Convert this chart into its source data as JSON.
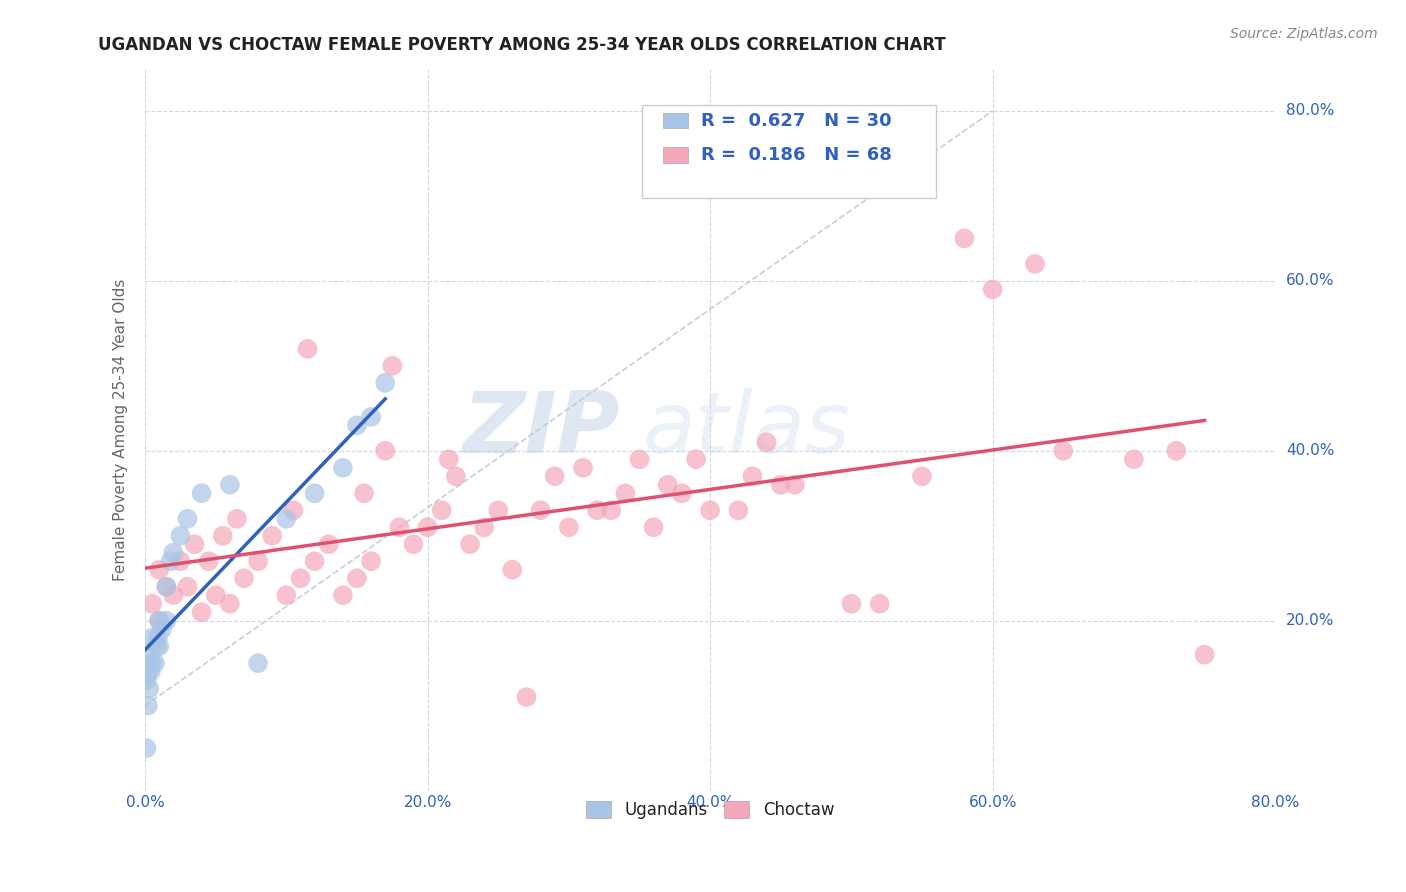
{
  "title": "UGANDAN VS CHOCTAW FEMALE POVERTY AMONG 25-34 YEAR OLDS CORRELATION CHART",
  "source": "Source: ZipAtlas.com",
  "ylabel": "Female Poverty Among 25-34 Year Olds",
  "watermark_zip": "ZIP",
  "watermark_atlas": "atlas",
  "ugandan_R": 0.627,
  "ugandan_N": 30,
  "choctaw_R": 0.186,
  "choctaw_N": 68,
  "ugandan_color": "#a8c4e6",
  "choctaw_color": "#f4a7b9",
  "ugandan_line_color": "#3060c0",
  "choctaw_line_color": "#e05070",
  "diagonal_line_color": "#c0c8d8",
  "background_color": "#ffffff",
  "grid_color": "#d0d8e8",
  "title_color": "#222222",
  "R_N_color": "#3060c0",
  "axis_label_color": "#666666",
  "tick_color": "#3060c0",
  "legend_labels": [
    "Ugandans",
    "Choctaw"
  ],
  "ugandan_x": [
    0.001,
    0.001,
    0.002,
    0.002,
    0.003,
    0.003,
    0.004,
    0.005,
    0.005,
    0.007,
    0.008,
    0.009,
    0.01,
    0.01,
    0.012,
    0.015,
    0.015,
    0.018,
    0.02,
    0.025,
    0.03,
    0.04,
    0.06,
    0.08,
    0.1,
    0.12,
    0.14,
    0.15,
    0.16,
    0.17
  ],
  "ugandan_y": [
    0.13,
    0.05,
    0.1,
    0.14,
    0.12,
    0.16,
    0.14,
    0.15,
    0.18,
    0.15,
    0.17,
    0.18,
    0.17,
    0.2,
    0.19,
    0.2,
    0.24,
    0.27,
    0.28,
    0.3,
    0.32,
    0.35,
    0.36,
    0.15,
    0.32,
    0.35,
    0.38,
    0.43,
    0.44,
    0.48
  ],
  "choctaw_x": [
    0.005,
    0.01,
    0.01,
    0.015,
    0.02,
    0.025,
    0.03,
    0.035,
    0.04,
    0.045,
    0.05,
    0.055,
    0.06,
    0.065,
    0.07,
    0.08,
    0.09,
    0.1,
    0.105,
    0.11,
    0.115,
    0.12,
    0.13,
    0.14,
    0.15,
    0.155,
    0.16,
    0.17,
    0.175,
    0.18,
    0.19,
    0.2,
    0.21,
    0.215,
    0.22,
    0.23,
    0.24,
    0.25,
    0.26,
    0.27,
    0.28,
    0.29,
    0.3,
    0.31,
    0.32,
    0.33,
    0.34,
    0.35,
    0.36,
    0.37,
    0.38,
    0.39,
    0.4,
    0.42,
    0.43,
    0.44,
    0.45,
    0.46,
    0.5,
    0.52,
    0.55,
    0.58,
    0.6,
    0.63,
    0.65,
    0.7,
    0.73,
    0.75
  ],
  "choctaw_y": [
    0.22,
    0.2,
    0.26,
    0.24,
    0.23,
    0.27,
    0.24,
    0.29,
    0.21,
    0.27,
    0.23,
    0.3,
    0.22,
    0.32,
    0.25,
    0.27,
    0.3,
    0.23,
    0.33,
    0.25,
    0.52,
    0.27,
    0.29,
    0.23,
    0.25,
    0.35,
    0.27,
    0.4,
    0.5,
    0.31,
    0.29,
    0.31,
    0.33,
    0.39,
    0.37,
    0.29,
    0.31,
    0.33,
    0.26,
    0.11,
    0.33,
    0.37,
    0.31,
    0.38,
    0.33,
    0.33,
    0.35,
    0.39,
    0.31,
    0.36,
    0.35,
    0.39,
    0.33,
    0.33,
    0.37,
    0.41,
    0.36,
    0.36,
    0.22,
    0.22,
    0.37,
    0.65,
    0.59,
    0.62,
    0.4,
    0.39,
    0.4,
    0.16
  ],
  "xlim": [
    0.0,
    0.8
  ],
  "ylim": [
    0.0,
    0.85
  ],
  "xticks": [
    0.0,
    0.2,
    0.4,
    0.6,
    0.8
  ],
  "xticklabels": [
    "0.0%",
    "20.0%",
    "40.0%",
    "60.0%",
    "80.0%"
  ],
  "yticks_right": [
    0.2,
    0.4,
    0.6,
    0.8
  ],
  "yticklabels_right": [
    "20.0%",
    "40.0%",
    "60.0%",
    "80.0%"
  ]
}
